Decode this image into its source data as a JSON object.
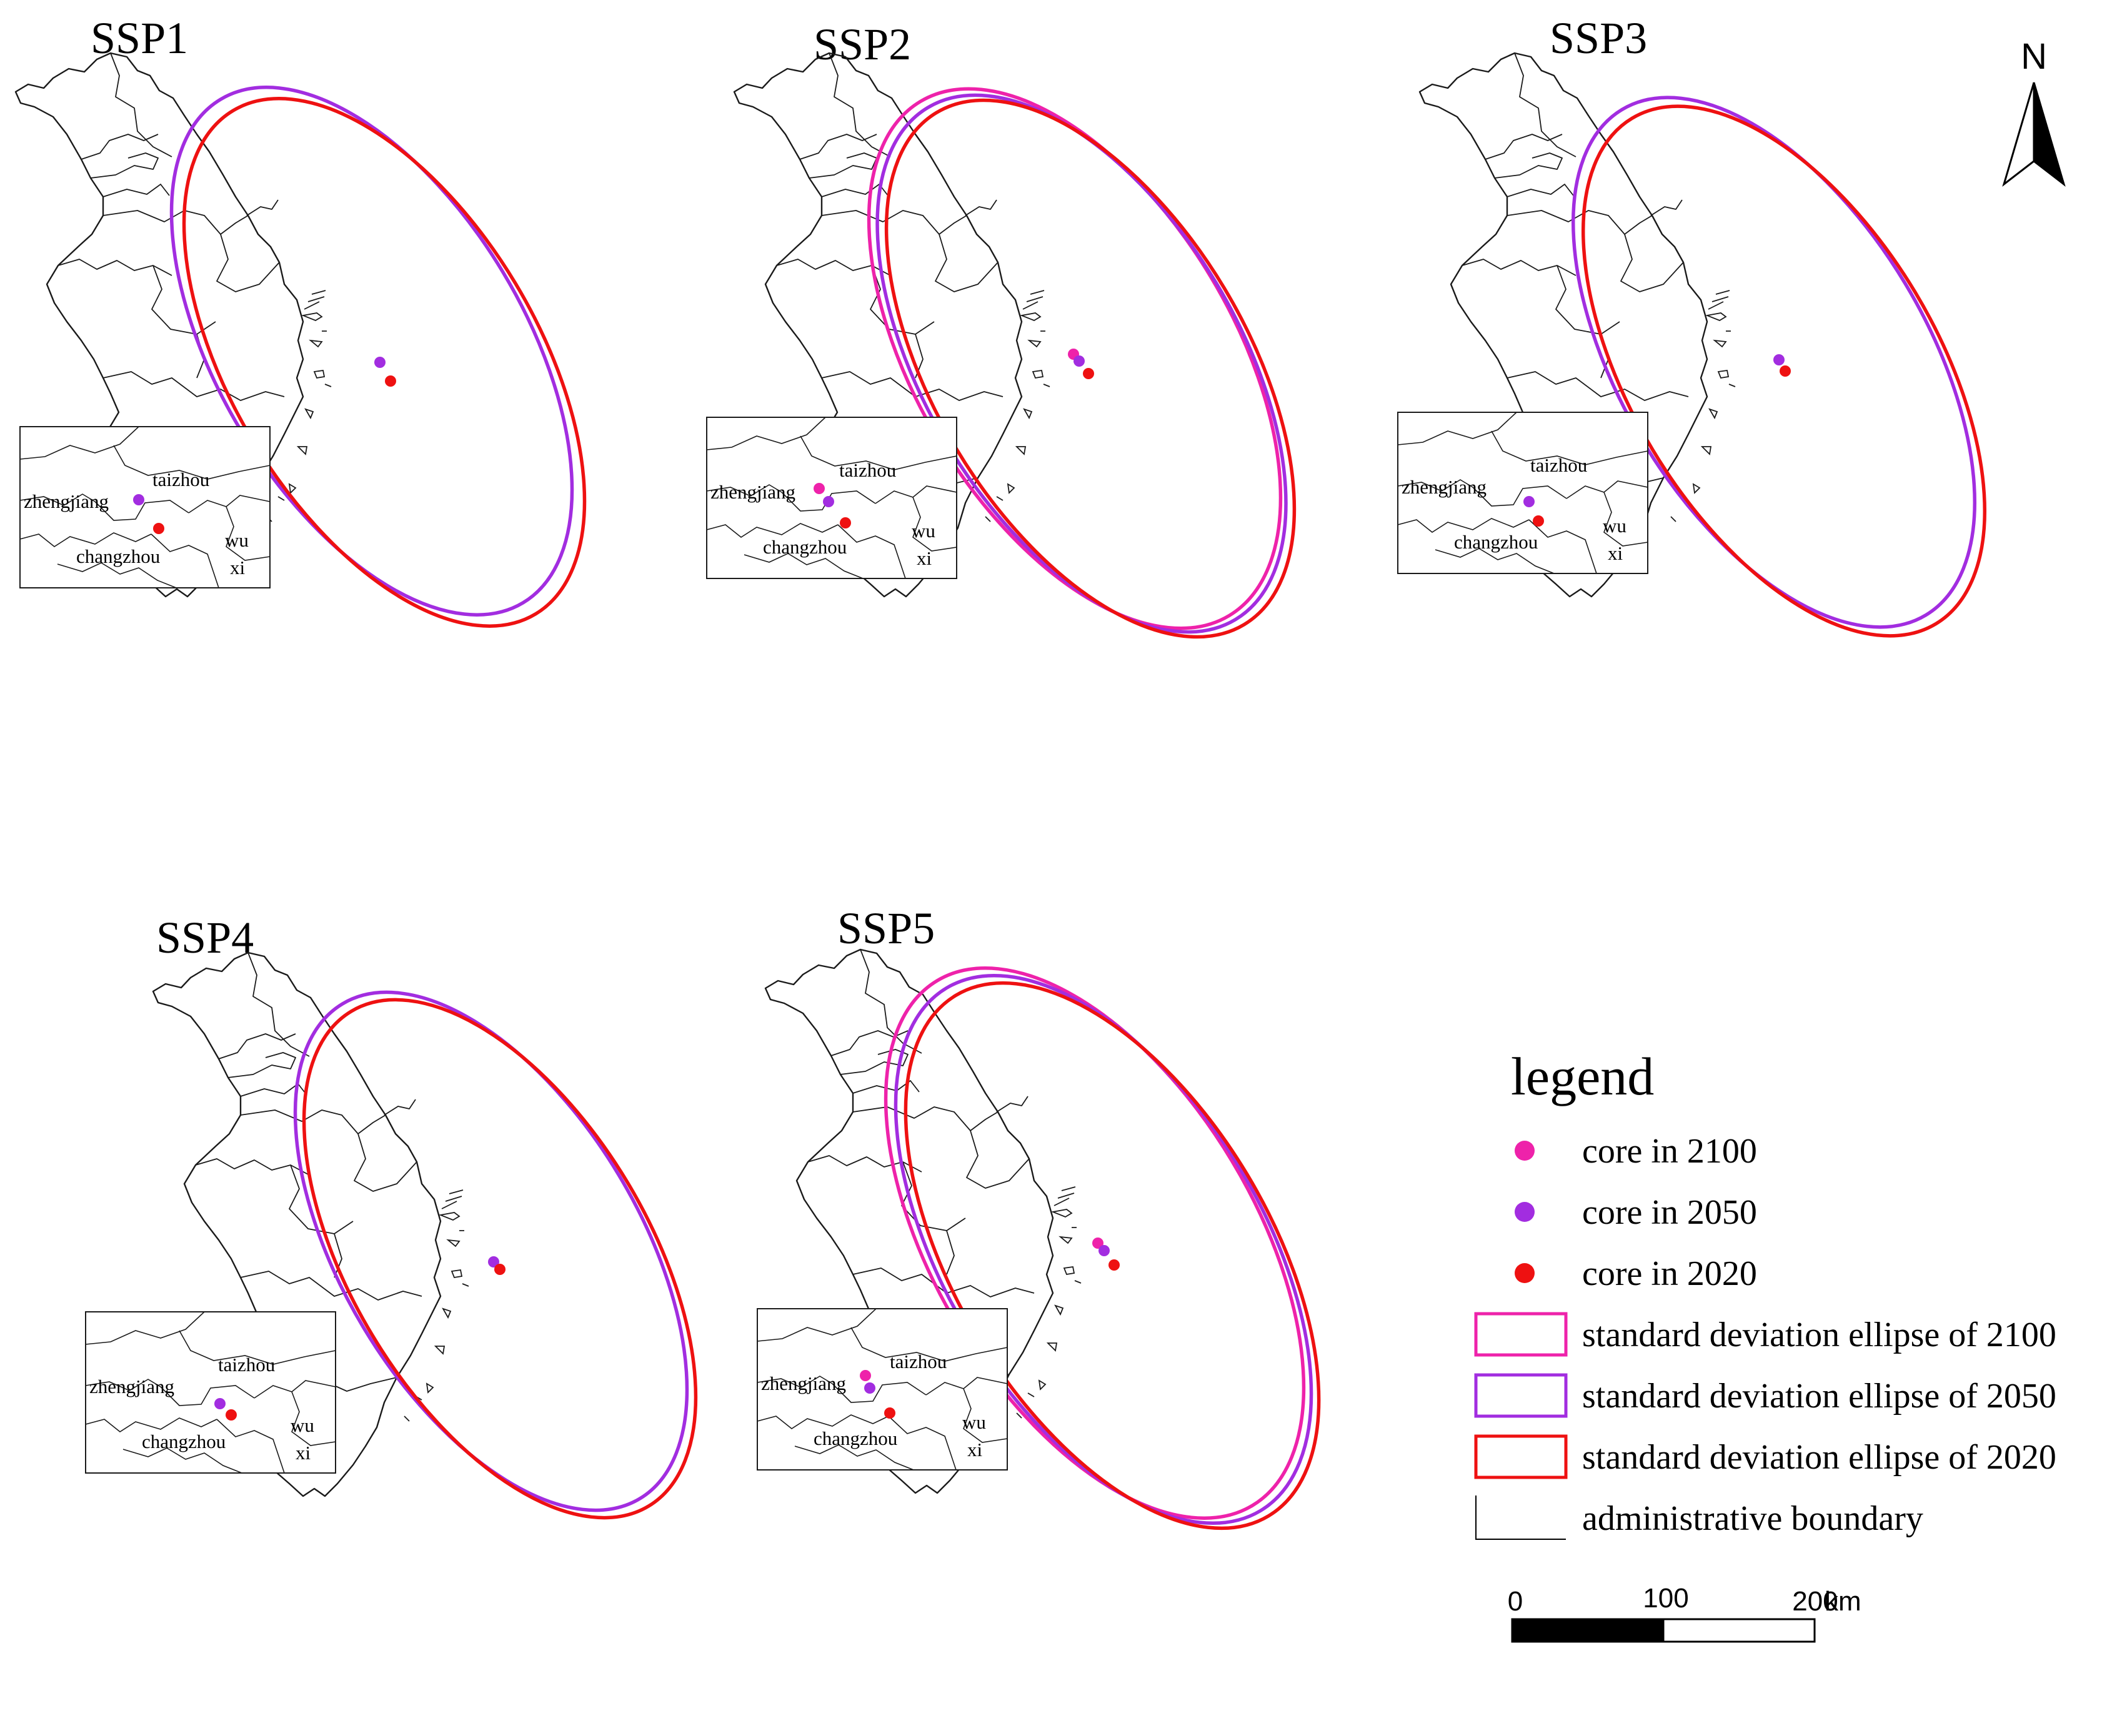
{
  "colors": {
    "y2100": "#ee22aa",
    "y2050": "#a22de0",
    "y2020": "#ee1111"
  },
  "panels": [
    {
      "title": "SSP1",
      "labels": {
        "taizhou": "taizhou",
        "zhengjiang": "zhengjiang",
        "changzhou": "changzhou",
        "wu": "wu",
        "xi": "xi"
      },
      "ellipses_shown": [
        "y2050",
        "y2020"
      ],
      "cores_shown": [
        "y2050",
        "y2020"
      ]
    },
    {
      "title": "SSP2",
      "labels": {
        "taizhou": "taizhou",
        "zhengjiang": "zhengjiang",
        "changzhou": "changzhou",
        "wu": "wu",
        "xi": "xi"
      },
      "ellipses_shown": [
        "y2100",
        "y2050",
        "y2020"
      ],
      "cores_shown": [
        "y2100",
        "y2050",
        "y2020"
      ]
    },
    {
      "title": "SSP3",
      "labels": {
        "taizhou": "taizhou",
        "zhengjiang": "zhengjiang",
        "changzhou": "changzhou",
        "wu": "wu",
        "xi": "xi"
      },
      "ellipses_shown": [
        "y2050",
        "y2020"
      ],
      "cores_shown": [
        "y2050",
        "y2020"
      ]
    },
    {
      "title": "SSP4",
      "labels": {
        "taizhou": "taizhou",
        "zhengjiang": "zhengjiang",
        "changzhou": "changzhou",
        "wu": "wu",
        "xi": "xi"
      },
      "ellipses_shown": [
        "y2050",
        "y2020"
      ],
      "cores_shown": [
        "y2050",
        "y2020"
      ]
    },
    {
      "title": "SSP5",
      "labels": {
        "taizhou": "taizhou",
        "zhengjiang": "zhengjiang",
        "changzhou": "changzhou",
        "wu": "wu",
        "xi": "xi"
      },
      "ellipses_shown": [
        "y2100",
        "y2050",
        "y2020"
      ],
      "cores_shown": [
        "y2100",
        "y2050",
        "y2020"
      ]
    }
  ],
  "legend": {
    "title": "legend",
    "items": [
      {
        "label": "core in 2100",
        "kind": "point",
        "color_key": "y2100"
      },
      {
        "label": "core in 2050",
        "kind": "point",
        "color_key": "y2050"
      },
      {
        "label": "core in 2020",
        "kind": "point",
        "color_key": "y2020"
      },
      {
        "label": "standard deviation ellipse of 2100",
        "kind": "rect",
        "color_key": "y2100"
      },
      {
        "label": "standard deviation ellipse of 2050",
        "kind": "rect",
        "color_key": "y2050"
      },
      {
        "label": "standard deviation ellipse of 2020",
        "kind": "rect",
        "color_key": "y2020"
      },
      {
        "label": "administrative boundary",
        "kind": "line",
        "color_key": ""
      }
    ]
  },
  "scalebar": {
    "ticks": [
      "0",
      "100",
      "200"
    ],
    "unit": "km"
  },
  "north_arrow": {
    "label": "N",
    "icon": "north-arrow-icon"
  }
}
